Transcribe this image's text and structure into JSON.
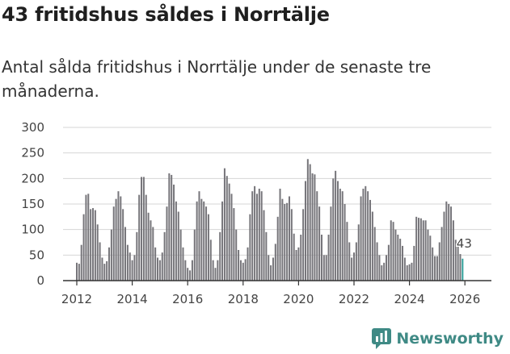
{
  "title": "43 fritidshus såldes i Norrtälje",
  "subtitle": "Antal sålda fritidshus i Norrtälje under de senaste tre månaderna.",
  "brand": {
    "name": "Newsworthy",
    "icon": "newsworthy-logo-icon"
  },
  "colors": {
    "bar": "#76757a",
    "highlight": "#2fa09a",
    "axis": "#333333",
    "grid": "#d6d6d6"
  },
  "chart_data": {
    "type": "bar",
    "title": "43 fritidshus såldes i Norrtälje",
    "ylabel": "",
    "xlabel": "",
    "ylim": [
      0,
      300
    ],
    "yticks": [
      "0",
      "50",
      "100",
      "150",
      "200",
      "250",
      "300"
    ],
    "xticks": [
      "2012",
      "2014",
      "2016",
      "2018",
      "2020",
      "2022",
      "2024",
      "2026"
    ],
    "start": "2012-01",
    "values": [
      35,
      33,
      70,
      130,
      168,
      170,
      140,
      142,
      138,
      110,
      75,
      45,
      33,
      38,
      65,
      100,
      145,
      160,
      175,
      165,
      140,
      105,
      70,
      55,
      40,
      50,
      95,
      168,
      203,
      203,
      168,
      133,
      118,
      105,
      65,
      45,
      40,
      55,
      95,
      145,
      210,
      207,
      188,
      155,
      135,
      100,
      65,
      40,
      25,
      20,
      40,
      100,
      155,
      175,
      160,
      155,
      145,
      130,
      80,
      40,
      25,
      40,
      95,
      155,
      220,
      205,
      190,
      170,
      142,
      100,
      60,
      40,
      35,
      42,
      65,
      130,
      175,
      185,
      170,
      180,
      175,
      138,
      95,
      50,
      30,
      45,
      72,
      125,
      180,
      160,
      150,
      152,
      165,
      140,
      92,
      60,
      65,
      90,
      140,
      195,
      238,
      228,
      210,
      208,
      175,
      145,
      90,
      50,
      50,
      90,
      145,
      200,
      215,
      195,
      180,
      175,
      150,
      115,
      75,
      45,
      55,
      75,
      110,
      165,
      180,
      185,
      175,
      158,
      135,
      105,
      75,
      50,
      30,
      35,
      50,
      70,
      118,
      115,
      100,
      90,
      82,
      68,
      45,
      30,
      32,
      35,
      68,
      125,
      123,
      122,
      118,
      118,
      100,
      88,
      65,
      48,
      48,
      75,
      105,
      135,
      155,
      150,
      145,
      118,
      80,
      70,
      52,
      43
    ],
    "last_label": "43"
  }
}
